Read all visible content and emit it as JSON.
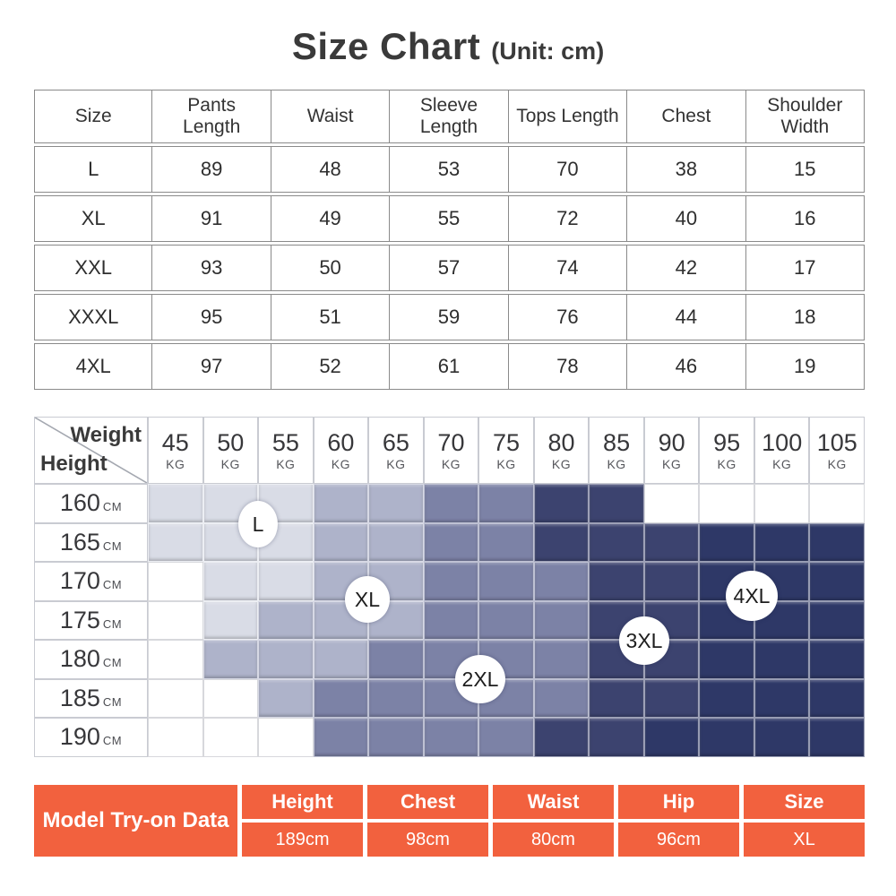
{
  "title": {
    "main": "Size Chart",
    "unit": "(Unit: cm)"
  },
  "size_table": {
    "headers": [
      "Size",
      "Pants Length",
      "Waist",
      "Sleeve Length",
      "Tops Length",
      "Chest",
      "Shoulder Width"
    ],
    "rows": [
      [
        "L",
        "89",
        "48",
        "53",
        "70",
        "38",
        "15"
      ],
      [
        "XL",
        "91",
        "49",
        "55",
        "72",
        "40",
        "16"
      ],
      [
        "XXL",
        "93",
        "50",
        "57",
        "74",
        "42",
        "17"
      ],
      [
        "XXXL",
        "95",
        "51",
        "59",
        "76",
        "44",
        "18"
      ],
      [
        "4XL",
        "97",
        "52",
        "61",
        "78",
        "46",
        "19"
      ]
    ]
  },
  "matrix": {
    "corner": {
      "top": "Weight",
      "bottom": "Height"
    },
    "weight_unit": "KG",
    "height_unit": "CM",
    "weights": [
      "45",
      "50",
      "55",
      "60",
      "65",
      "70",
      "75",
      "80",
      "85",
      "90",
      "95",
      "100",
      "105"
    ],
    "heights": [
      "160",
      "165",
      "170",
      "175",
      "180",
      "185",
      "190"
    ],
    "zones": [
      [
        "L",
        "L",
        "L",
        "XL",
        "XL",
        "2XL",
        "2XL",
        "3XL",
        "3XL",
        "",
        "",
        "",
        ""
      ],
      [
        "L",
        "L",
        "L",
        "XL",
        "XL",
        "2XL",
        "2XL",
        "3XL",
        "3XL",
        "3XL",
        "4XL",
        "4XL",
        "4XL"
      ],
      [
        "",
        "L",
        "L",
        "XL",
        "XL",
        "2XL",
        "2XL",
        "2XL",
        "3XL",
        "3XL",
        "4XL",
        "4XL",
        "4XL"
      ],
      [
        "",
        "L",
        "XL",
        "XL",
        "XL",
        "2XL",
        "2XL",
        "2XL",
        "3XL",
        "3XL",
        "4XL",
        "4XL",
        "4XL"
      ],
      [
        "",
        "XL",
        "XL",
        "XL",
        "2XL",
        "2XL",
        "2XL",
        "2XL",
        "3XL",
        "3XL",
        "4XL",
        "4XL",
        "4XL"
      ],
      [
        "",
        "",
        "XL",
        "2XL",
        "2XL",
        "2XL",
        "2XL",
        "2XL",
        "3XL",
        "3XL",
        "4XL",
        "4XL",
        "4XL"
      ],
      [
        "",
        "",
        "",
        "2XL",
        "2XL",
        "2XL",
        "2XL",
        "3XL",
        "3XL",
        "4XL",
        "4XL",
        "4XL",
        "4XL"
      ]
    ],
    "zone_colors": {
      "L": "#d9dce6",
      "XL": "#aeb3ca",
      "2XL": "#7c82a6",
      "3XL": "#3c436f",
      "4XL": "#2e3867",
      "": "#ffffff"
    },
    "labels": [
      {
        "text": "L"
      },
      {
        "text": "XL"
      },
      {
        "text": "2XL"
      },
      {
        "text": "3XL"
      },
      {
        "text": "4XL"
      }
    ]
  },
  "model_table": {
    "title": "Model Try-on Data",
    "accent": "#f2613e",
    "columns": [
      {
        "label": "Height",
        "value": "189cm"
      },
      {
        "label": "Chest",
        "value": "98cm"
      },
      {
        "label": "Waist",
        "value": "80cm"
      },
      {
        "label": "Hip",
        "value": "96cm"
      },
      {
        "label": "Size",
        "value": "XL"
      }
    ]
  },
  "chart_data": [
    {
      "type": "table",
      "title": "Size Chart (Unit: cm)",
      "columns": [
        "Size",
        "Pants Length",
        "Waist",
        "Sleeve Length",
        "Tops Length",
        "Chest",
        "Shoulder Width"
      ],
      "rows": [
        [
          "L",
          89,
          48,
          53,
          70,
          38,
          15
        ],
        [
          "XL",
          91,
          49,
          55,
          72,
          40,
          16
        ],
        [
          "XXL",
          93,
          50,
          57,
          74,
          42,
          17
        ],
        [
          "XXXL",
          95,
          51,
          59,
          76,
          44,
          18
        ],
        [
          "4XL",
          97,
          52,
          61,
          78,
          46,
          19
        ]
      ]
    },
    {
      "type": "heatmap",
      "xlabel": "Weight",
      "ylabel": "Height",
      "x": [
        45,
        50,
        55,
        60,
        65,
        70,
        75,
        80,
        85,
        90,
        95,
        100,
        105
      ],
      "x_unit": "KG",
      "y": [
        160,
        165,
        170,
        175,
        180,
        185,
        190
      ],
      "y_unit": "CM",
      "values": [
        [
          "L",
          "L",
          "L",
          "XL",
          "XL",
          "2XL",
          "2XL",
          "3XL",
          "3XL",
          "",
          "",
          "",
          ""
        ],
        [
          "L",
          "L",
          "L",
          "XL",
          "XL",
          "2XL",
          "2XL",
          "3XL",
          "3XL",
          "3XL",
          "4XL",
          "4XL",
          "4XL"
        ],
        [
          "",
          "L",
          "L",
          "XL",
          "XL",
          "2XL",
          "2XL",
          "2XL",
          "3XL",
          "3XL",
          "4XL",
          "4XL",
          "4XL"
        ],
        [
          "",
          "L",
          "XL",
          "XL",
          "XL",
          "2XL",
          "2XL",
          "2XL",
          "3XL",
          "3XL",
          "4XL",
          "4XL",
          "4XL"
        ],
        [
          "",
          "XL",
          "XL",
          "XL",
          "2XL",
          "2XL",
          "2XL",
          "2XL",
          "3XL",
          "3XL",
          "4XL",
          "4XL",
          "4XL"
        ],
        [
          "",
          "",
          "XL",
          "2XL",
          "2XL",
          "2XL",
          "2XL",
          "2XL",
          "3XL",
          "3XL",
          "4XL",
          "4XL",
          "4XL"
        ],
        [
          "",
          "",
          "",
          "2XL",
          "2XL",
          "2XL",
          "2XL",
          "3XL",
          "3XL",
          "4XL",
          "4XL",
          "4XL",
          "4XL"
        ]
      ],
      "legend": [
        "L",
        "XL",
        "2XL",
        "3XL",
        "4XL"
      ],
      "legend_position": "inline-circles"
    },
    {
      "type": "table",
      "title": "Model Try-on Data",
      "columns": [
        "Height",
        "Chest",
        "Waist",
        "Hip",
        "Size"
      ],
      "rows": [
        [
          "189cm",
          "98cm",
          "80cm",
          "96cm",
          "XL"
        ]
      ]
    }
  ]
}
